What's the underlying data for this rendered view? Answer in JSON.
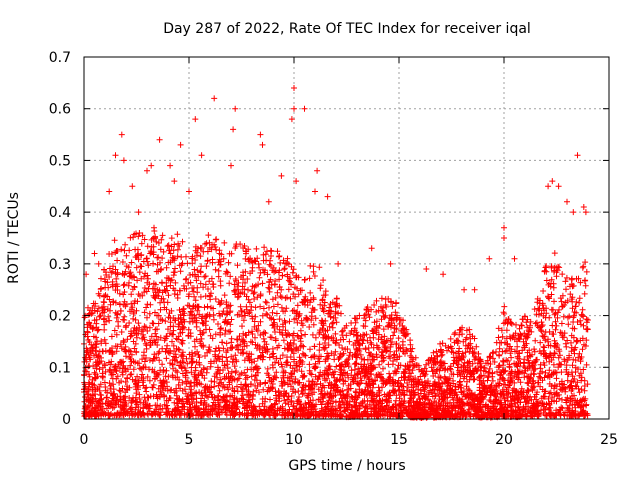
{
  "chart_data": {
    "type": "scatter",
    "title": "Day 287 of 2022, Rate Of TEC Index for receiver iqal",
    "xlabel": "GPS time / hours",
    "ylabel": "ROTI / TECUs",
    "xlim": [
      0,
      25
    ],
    "ylim": [
      0,
      0.7
    ],
    "x_ticks": [
      0,
      5,
      10,
      15,
      20,
      25
    ],
    "y_ticks": [
      0,
      0.1,
      0.2,
      0.3,
      0.4,
      0.5,
      0.6,
      0.7
    ],
    "grid": true,
    "marker": "+",
    "color": "#ff0000",
    "envelope": {
      "x": [
        0,
        0.5,
        1,
        1.5,
        2,
        2.5,
        3,
        3.5,
        4,
        4.5,
        5,
        5.5,
        6,
        6.5,
        7,
        7.5,
        8,
        8.5,
        9,
        9.5,
        10,
        10.5,
        11,
        11.5,
        12,
        12.5,
        13,
        13.5,
        14,
        14.5,
        15,
        15.5,
        16,
        16.5,
        17,
        17.5,
        18,
        18.5,
        19,
        19.5,
        20,
        20.5,
        21,
        21.5,
        22,
        22.5,
        23,
        23.5,
        24
      ],
      "y": [
        0.2,
        0.24,
        0.3,
        0.36,
        0.34,
        0.37,
        0.38,
        0.37,
        0.35,
        0.36,
        0.32,
        0.34,
        0.36,
        0.34,
        0.35,
        0.34,
        0.33,
        0.34,
        0.33,
        0.32,
        0.3,
        0.27,
        0.32,
        0.26,
        0.24,
        0.18,
        0.2,
        0.22,
        0.23,
        0.24,
        0.22,
        0.16,
        0.1,
        0.12,
        0.15,
        0.16,
        0.18,
        0.17,
        0.1,
        0.14,
        0.22,
        0.18,
        0.2,
        0.22,
        0.3,
        0.34,
        0.28,
        0.3,
        0.32
      ]
    },
    "outliers": [
      [
        0.1,
        0.28
      ],
      [
        0.5,
        0.32
      ],
      [
        1.2,
        0.44
      ],
      [
        1.5,
        0.51
      ],
      [
        1.8,
        0.55
      ],
      [
        1.9,
        0.5
      ],
      [
        2.3,
        0.45
      ],
      [
        3.0,
        0.48
      ],
      [
        3.2,
        0.49
      ],
      [
        3.6,
        0.54
      ],
      [
        4.1,
        0.49
      ],
      [
        4.3,
        0.46
      ],
      [
        4.6,
        0.53
      ],
      [
        5.3,
        0.58
      ],
      [
        5.6,
        0.51
      ],
      [
        6.2,
        0.62
      ],
      [
        7.2,
        0.6
      ],
      [
        7.1,
        0.56
      ],
      [
        7.0,
        0.49
      ],
      [
        8.4,
        0.55
      ],
      [
        8.5,
        0.53
      ],
      [
        9.4,
        0.47
      ],
      [
        10.0,
        0.64
      ],
      [
        10.0,
        0.6
      ],
      [
        9.9,
        0.58
      ],
      [
        10.5,
        0.6
      ],
      [
        10.1,
        0.46
      ],
      [
        11.1,
        0.48
      ],
      [
        11.0,
        0.44
      ],
      [
        11.6,
        0.43
      ],
      [
        13.7,
        0.33
      ],
      [
        14.6,
        0.3
      ],
      [
        16.3,
        0.29
      ],
      [
        17.1,
        0.28
      ],
      [
        18.1,
        0.25
      ],
      [
        18.6,
        0.25
      ],
      [
        19.3,
        0.31
      ],
      [
        20.0,
        0.37
      ],
      [
        20.0,
        0.35
      ],
      [
        20.5,
        0.31
      ],
      [
        22.1,
        0.45
      ],
      [
        22.3,
        0.46
      ],
      [
        22.6,
        0.45
      ],
      [
        23.0,
        0.42
      ],
      [
        23.3,
        0.4
      ],
      [
        23.5,
        0.51
      ],
      [
        23.8,
        0.41
      ],
      [
        23.9,
        0.4
      ],
      [
        0.7,
        0.3
      ],
      [
        2.6,
        0.4
      ],
      [
        5.0,
        0.44
      ],
      [
        8.8,
        0.42
      ],
      [
        12.1,
        0.3
      ]
    ],
    "point_count": 5200,
    "seed": 287
  }
}
